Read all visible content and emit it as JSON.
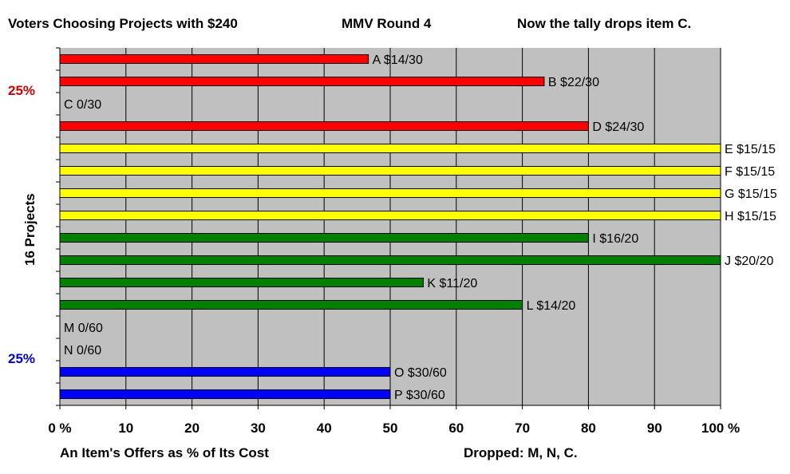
{
  "header": {
    "title_left": "Voters Choosing Projects with $240",
    "title_center": "MMV Round 4",
    "title_right": "Now the tally drops item C."
  },
  "side": {
    "pct_top": "25%",
    "pct_bottom": "25%",
    "pct_top_color": "#cc0000",
    "pct_bottom_color": "#0000cc",
    "y_axis_label": "16 Projects"
  },
  "footer": {
    "x_axis_label": "An Item's Offers as % of Its Cost",
    "dropped": "Dropped: M, N, C."
  },
  "chart_data": {
    "type": "bar",
    "orientation": "horizontal",
    "xlim": [
      0,
      100
    ],
    "x_ticks": [
      "0 %",
      "10",
      "20",
      "30",
      "40",
      "50",
      "60",
      "70",
      "80",
      "90",
      "100 %"
    ],
    "grid": true,
    "plot_background": "#c0c0c0",
    "bars": [
      {
        "label": "A $14/30",
        "value": 46.7,
        "color": "#ff0000"
      },
      {
        "label": "B $22/30",
        "value": 73.3,
        "color": "#ff0000"
      },
      {
        "label": "C 0/30",
        "value": 0,
        "color": "#ff0000"
      },
      {
        "label": "D $24/30",
        "value": 80,
        "color": "#ff0000"
      },
      {
        "label": "E $15/15",
        "value": 100,
        "color": "#ffff00"
      },
      {
        "label": "F $15/15",
        "value": 100,
        "color": "#ffff00"
      },
      {
        "label": "G $15/15",
        "value": 100,
        "color": "#ffff00"
      },
      {
        "label": "H $15/15",
        "value": 100,
        "color": "#ffff00"
      },
      {
        "label": "I $16/20",
        "value": 80,
        "color": "#008000"
      },
      {
        "label": "J $20/20",
        "value": 100,
        "color": "#008000"
      },
      {
        "label": "K $11/20",
        "value": 55,
        "color": "#008000"
      },
      {
        "label": "L $14/20",
        "value": 70,
        "color": "#008000"
      },
      {
        "label": "M 0/60",
        "value": 0,
        "color": "#0000ff"
      },
      {
        "label": "N 0/60",
        "value": 0,
        "color": "#0000ff"
      },
      {
        "label": "O $30/60",
        "value": 50,
        "color": "#0000ff"
      },
      {
        "label": "P $30/60",
        "value": 50,
        "color": "#0000ff"
      }
    ]
  }
}
